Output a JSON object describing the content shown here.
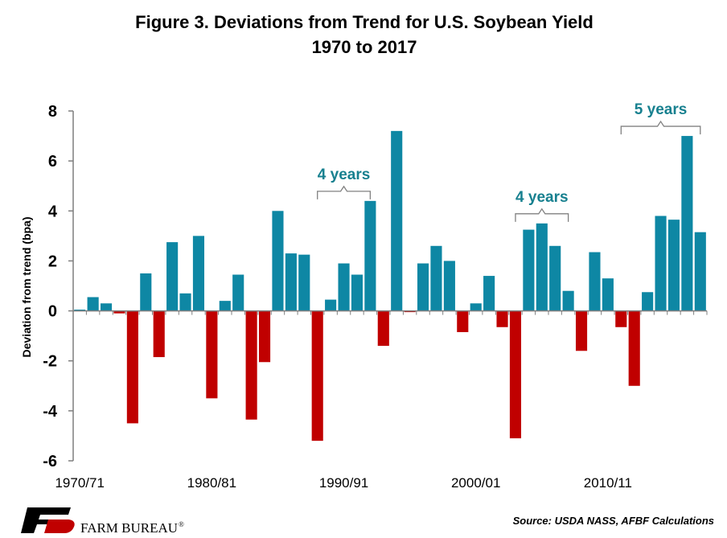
{
  "chart_data": {
    "type": "bar",
    "title": "Figure 3. Deviations from Trend for U.S. Soybean Yield",
    "subtitle": "1970 to 2017",
    "ylabel": "Deviation from trend (bpa)",
    "xlabel": "",
    "ylim": [
      -6,
      8
    ],
    "yticks": [
      8,
      6,
      4,
      2,
      0,
      -2,
      -4,
      -6
    ],
    "x_tick_labels": [
      {
        "label": "1970/71",
        "index": 0
      },
      {
        "label": "1980/81",
        "index": 10
      },
      {
        "label": "1990/91",
        "index": 20
      },
      {
        "label": "2000/01",
        "index": 30
      },
      {
        "label": "2010/11",
        "index": 40
      }
    ],
    "categories": [
      "1970/71",
      "1971/72",
      "1972/73",
      "1973/74",
      "1974/75",
      "1975/76",
      "1976/77",
      "1977/78",
      "1978/79",
      "1979/80",
      "1980/81",
      "1981/82",
      "1982/83",
      "1983/84",
      "1984/85",
      "1985/86",
      "1986/87",
      "1987/88",
      "1988/89",
      "1989/90",
      "1990/91",
      "1991/92",
      "1992/93",
      "1993/94",
      "1994/95",
      "1995/96",
      "1996/97",
      "1997/98",
      "1998/99",
      "1999/00",
      "2000/01",
      "2001/02",
      "2002/03",
      "2003/04",
      "2004/05",
      "2005/06",
      "2006/07",
      "2007/08",
      "2008/09",
      "2009/10",
      "2010/11",
      "2011/12",
      "2012/13",
      "2013/14",
      "2014/15",
      "2015/16",
      "2016/17",
      "2017/18"
    ],
    "values": [
      0.05,
      0.55,
      0.3,
      -0.1,
      -4.5,
      1.5,
      -1.85,
      2.75,
      0.7,
      3.0,
      -3.5,
      0.4,
      1.45,
      -4.35,
      -2.05,
      4.0,
      2.3,
      2.25,
      -5.2,
      0.45,
      1.9,
      1.45,
      4.4,
      -1.4,
      7.2,
      -0.05,
      1.9,
      2.6,
      2.0,
      -0.85,
      0.3,
      1.4,
      -0.65,
      -5.1,
      3.25,
      3.5,
      2.6,
      0.8,
      -1.6,
      2.35,
      1.3,
      -0.65,
      -3.0,
      0.75,
      3.8,
      3.65,
      7.0,
      3.15
    ],
    "colors": {
      "positive": "#0e87a4",
      "negative": "#c00000",
      "annotation": "#17808f",
      "bracket": "#808080"
    },
    "annotations": [
      {
        "text": "4 years",
        "from_index": 18,
        "to_index": 22
      },
      {
        "text": "4 years",
        "from_index": 33,
        "to_index": 37
      },
      {
        "text": "5 years",
        "from_index": 41,
        "to_index": 47
      }
    ],
    "grid": false,
    "legend": "none"
  },
  "footer": {
    "source": "Source: USDA NASS, AFBF Calculations",
    "logo_text": "FARM BUREAU",
    "logo_mark": "®",
    "logo_icon": "farm-bureau-fb-icon"
  }
}
